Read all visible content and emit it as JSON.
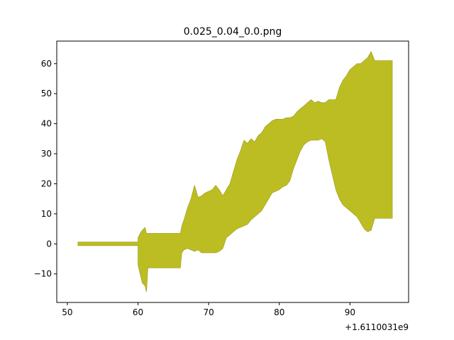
{
  "chart_data": {
    "type": "area",
    "title": "0.025_0.04_0.0.png",
    "xlabel": "",
    "ylabel": "",
    "x_offset_label": "+1.6110031e9",
    "xlim": [
      48.5,
      98.3
    ],
    "ylim": [
      -19.5,
      67.5
    ],
    "xticks": [
      50,
      60,
      70,
      80,
      90
    ],
    "yticks": [
      -10,
      0,
      10,
      20,
      30,
      40,
      50,
      60
    ],
    "grid": false,
    "legend": "none",
    "fill_color": "#bcbd22",
    "series": [
      {
        "x": [
          51.5,
          60.0,
          60.0,
          60.3,
          60.6,
          61.0,
          61.2,
          61.4,
          62.0,
          66.0,
          66.2,
          66.5,
          67.0,
          67.5,
          68.0,
          68.5,
          69.0,
          69.5,
          70.0,
          70.5,
          71.0,
          71.5,
          72.0,
          72.5,
          73.0,
          73.5,
          74.0,
          74.5,
          75.0,
          75.5,
          76.0,
          76.5,
          77.0,
          77.5,
          78.0,
          78.5,
          79.0,
          79.5,
          80.0,
          80.5,
          81.0,
          81.5,
          82.0,
          82.5,
          83.0,
          83.5,
          84.0,
          84.5,
          85.0,
          85.5,
          86.0,
          86.5,
          87.0,
          87.5,
          88.0,
          88.5,
          89.0,
          89.5,
          90.0,
          90.5,
          91.0,
          91.5,
          92.0,
          92.5,
          93.0,
          93.5,
          94.0,
          94.5,
          95.0,
          95.5,
          96.0
        ],
        "upper": [
          0.6,
          0.6,
          2.0,
          3.5,
          4.5,
          5.5,
          3.5,
          3.5,
          3.5,
          3.5,
          6.0,
          8.0,
          12.0,
          15.0,
          19.5,
          15.5,
          16.0,
          17.0,
          17.5,
          18.0,
          19.5,
          18.0,
          16.0,
          18.0,
          20.0,
          24.0,
          28.0,
          31.0,
          34.5,
          33.5,
          35.0,
          34.0,
          36.0,
          37.0,
          39.0,
          40.0,
          41.0,
          41.5,
          41.5,
          41.5,
          42.0,
          42.0,
          42.5,
          44.0,
          45.0,
          46.0,
          47.0,
          48.0,
          47.0,
          47.5,
          47.0,
          47.0,
          48.0,
          48.0,
          48.0,
          52.0,
          54.5,
          56.0,
          58.0,
          59.0,
          60.0,
          60.0,
          61.0,
          62.0,
          64.0,
          61.0,
          61.0,
          61.0,
          61.0,
          61.0,
          61.0
        ],
        "lower": [
          -0.6,
          -0.6,
          -7.0,
          -10.0,
          -13.0,
          -14.0,
          -16.0,
          -8.0,
          -8.0,
          -8.0,
          -3.0,
          -2.0,
          -1.5,
          -2.0,
          -2.5,
          -2.0,
          -3.0,
          -3.0,
          -3.0,
          -3.0,
          -3.0,
          -2.5,
          -1.5,
          2.0,
          3.0,
          4.0,
          5.0,
          5.5,
          6.0,
          6.5,
          8.0,
          9.0,
          10.0,
          11.0,
          13.0,
          15.0,
          17.0,
          17.5,
          18.0,
          19.0,
          19.5,
          21.0,
          25.0,
          28.0,
          31.0,
          33.0,
          34.0,
          34.5,
          34.5,
          34.5,
          35.0,
          34.0,
          28.0,
          23.0,
          18.0,
          15.0,
          13.0,
          12.0,
          11.0,
          10.0,
          9.0,
          7.0,
          5.0,
          4.0,
          4.5,
          8.5,
          8.5,
          8.5,
          8.5,
          8.5,
          8.5
        ]
      }
    ]
  }
}
